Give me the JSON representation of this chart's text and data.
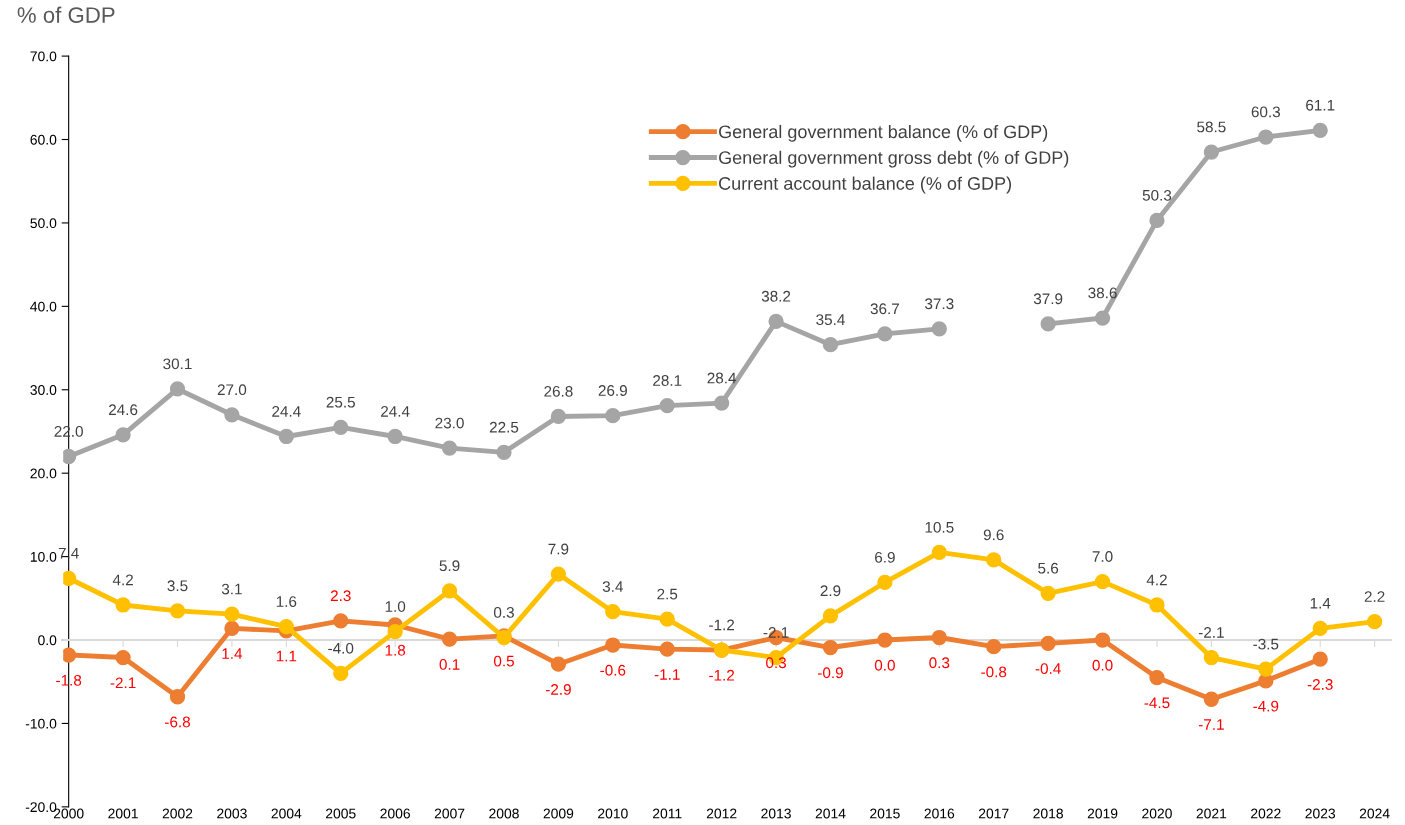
{
  "chart_data": {
    "type": "line",
    "ylabel": "% of GDP",
    "categories": [
      "2000",
      "2001",
      "2002",
      "2003",
      "2004",
      "2005",
      "2006",
      "2007",
      "2008",
      "2009",
      "2010",
      "2011",
      "2012",
      "2013",
      "2014",
      "2015",
      "2016",
      "2017",
      "2018",
      "2019",
      "2020",
      "2021",
      "2022",
      "2023",
      "2024"
    ],
    "series": [
      {
        "name": "General government balance (% of GDP)",
        "color": "#ed7d31",
        "values": [
          -1.8,
          -2.1,
          -6.8,
          1.4,
          1.1,
          2.3,
          1.8,
          0.1,
          0.5,
          -2.9,
          -0.6,
          -1.1,
          -1.2,
          0.3,
          -0.9,
          0.0,
          0.3,
          -0.8,
          -0.4,
          0.0,
          -4.5,
          -7.1,
          -4.9,
          -2.3,
          null
        ],
        "value_labels": [
          "-1.8",
          "-2.1",
          "-6.8",
          "1.4",
          "1.1",
          "2.3",
          "1.8",
          "0.1",
          "0.5",
          "-2.9",
          "-0.6",
          "-1.1",
          "-1.2",
          "0.3",
          "-0.9",
          "0.0",
          "0.3",
          "-0.8",
          "-0.4",
          "0.0",
          "-4.5",
          "-7.1",
          "-4.9",
          "-2.3",
          null
        ]
      },
      {
        "name": "General government gross debt (% of GDP)",
        "color": "#a5a5a5",
        "values": [
          22.0,
          24.6,
          30.1,
          27.0,
          24.4,
          25.5,
          24.4,
          23.0,
          22.5,
          26.8,
          26.9,
          28.1,
          28.4,
          38.2,
          35.4,
          36.7,
          37.3,
          null,
          37.9,
          38.6,
          50.3,
          58.5,
          60.3,
          61.1,
          null
        ],
        "value_labels": [
          "22.0",
          "24.6",
          "30.1",
          "27.0",
          "24.4",
          "25.5",
          "24.4",
          "23.0",
          "22.5",
          "26.8",
          "26.9",
          "28.1",
          "28.4",
          "38.2",
          "35.4",
          "36.7",
          "37.3",
          null,
          "37.9",
          "38.6",
          "50.3",
          "58.5",
          "60.3",
          "61.1",
          null
        ]
      },
      {
        "name": "Current account balance (% of GDP)",
        "color": "#ffc000",
        "values": [
          7.4,
          4.2,
          3.5,
          3.1,
          1.6,
          -4.0,
          1.0,
          5.9,
          0.3,
          7.9,
          3.4,
          2.5,
          -1.2,
          -2.1,
          2.9,
          6.9,
          10.5,
          9.6,
          5.6,
          7.0,
          4.2,
          -2.1,
          -3.5,
          1.4,
          2.2
        ],
        "value_labels": [
          "7.4",
          "4.2",
          "3.5",
          "3.1",
          "1.6",
          "-4.0",
          "1.0",
          "5.9",
          "0.3",
          "7.9",
          "3.4",
          "2.5",
          "-1.2",
          "-2.1",
          "2.9",
          "6.9",
          "10.5",
          "9.6",
          "5.6",
          "7.0",
          "4.2",
          "-2.1",
          "-3.5",
          "1.4",
          "2.2"
        ]
      }
    ],
    "ylim": [
      -20,
      70
    ],
    "yticks": [
      {
        "value": -20,
        "label": "-20.0"
      },
      {
        "value": -10,
        "label": "-10.0"
      },
      {
        "value": 0,
        "label": "0.0"
      },
      {
        "value": 10,
        "label": "10.0"
      },
      {
        "value": 20,
        "label": "20.0"
      },
      {
        "value": 30,
        "label": "30.0"
      },
      {
        "value": 40,
        "label": "40.0"
      },
      {
        "value": 50,
        "label": "50.0"
      },
      {
        "value": 60,
        "label": "60.0"
      },
      {
        "value": 70,
        "label": "70.0"
      }
    ],
    "marker": "circle",
    "line_style": "solid",
    "legend": "top right"
  }
}
